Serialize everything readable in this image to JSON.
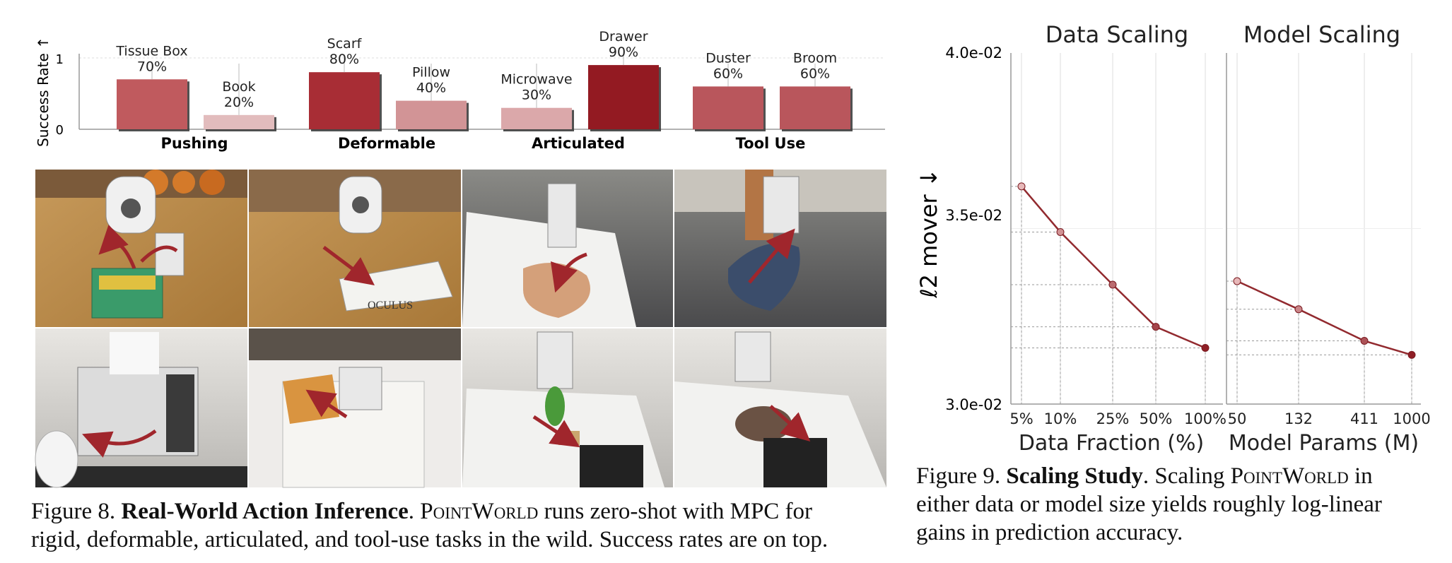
{
  "figure8": {
    "bar_chart": {
      "ylabel": "Success Rate ↑",
      "yticks": [
        "0",
        "1"
      ],
      "groups": [
        "Pushing",
        "Deformable",
        "Articulated",
        "Tool Use"
      ],
      "bars": [
        {
          "label": "Tissue Box",
          "pct": "70%",
          "value": 0.7,
          "color": "#c05a5e"
        },
        {
          "label": "Book",
          "pct": "20%",
          "value": 0.2,
          "color": "#e2bcbd"
        },
        {
          "label": "Scarf",
          "pct": "80%",
          "value": 0.8,
          "color": "#a82d35"
        },
        {
          "label": "Pillow",
          "pct": "40%",
          "value": 0.4,
          "color": "#d29496"
        },
        {
          "label": "Microwave",
          "pct": "30%",
          "value": 0.3,
          "color": "#dba8aa"
        },
        {
          "label": "Drawer",
          "pct": "90%",
          "value": 0.9,
          "color": "#931a22"
        },
        {
          "label": "Duster",
          "pct": "60%",
          "value": 0.6,
          "color": "#b9565c"
        },
        {
          "label": "Broom",
          "pct": "60%",
          "value": 0.6,
          "color": "#b9565c"
        }
      ]
    },
    "photo_book_label": "OCULUS",
    "caption": {
      "prefix": "Figure 8. ",
      "title": "Real-World Action Inference",
      "after_title": ". ",
      "method": "PointWorld",
      "text_line1": " runs zero-shot with MPC for",
      "text_line2": "rigid, deformable, articulated, and tool-use tasks in the wild. Success rates are on top."
    }
  },
  "figure9": {
    "ylabel": "ℓ2 mover ↓",
    "yticks": [
      "4.0e-02",
      "3.5e-02",
      "3.0e-02"
    ],
    "chart_data": [
      {
        "type": "line",
        "title": "Data Scaling",
        "xlabel": "Data Fraction (%)",
        "categories": [
          "5%",
          "10%",
          "25%",
          "50%",
          "100%"
        ],
        "values": [
          0.0362,
          0.0349,
          0.0334,
          0.0322,
          0.0316
        ],
        "ylim": [
          0.03,
          0.04
        ],
        "color_start": "#e7b8b9",
        "color_end": "#8f1f26"
      },
      {
        "type": "line",
        "title": "Model Scaling",
        "xlabel": "Model Params (M)",
        "categories": [
          "50",
          "132",
          "411",
          "1000"
        ],
        "values": [
          0.0335,
          0.0327,
          0.0318,
          0.0314
        ],
        "ylim": [
          0.03,
          0.04
        ],
        "color_start": "#e7b8b9",
        "color_end": "#8f1f26"
      }
    ],
    "caption": {
      "prefix": "Figure 9. ",
      "title": "Scaling Study",
      "after_title": ". Scaling ",
      "method": "PointWorld",
      "text_line1_end": " in",
      "text_line2": "either data or model size yields roughly log-linear",
      "text_line3": "gains in prediction accuracy."
    }
  }
}
